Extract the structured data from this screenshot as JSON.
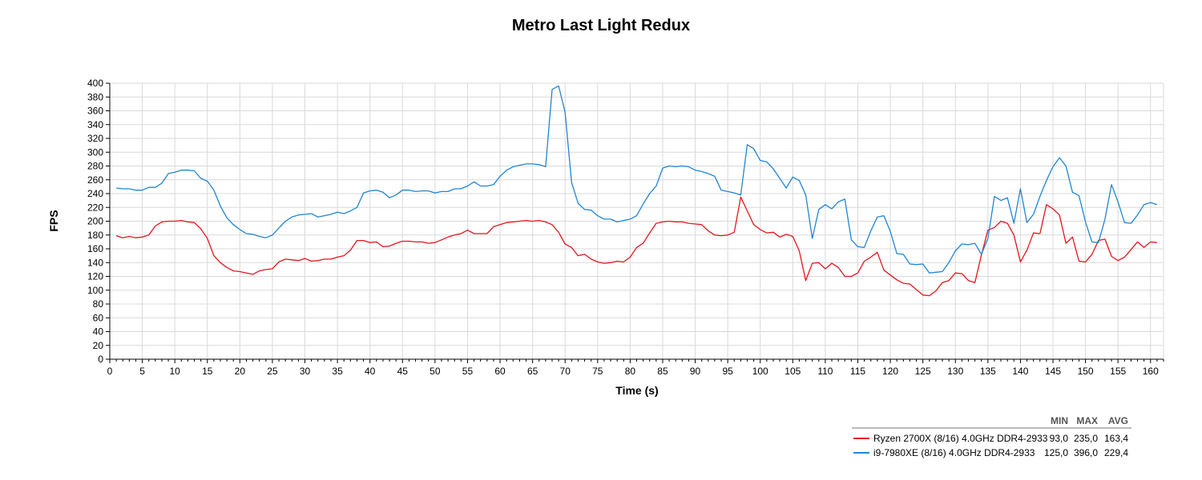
{
  "chart_data": {
    "type": "line",
    "title": "Metro Last Light Redux",
    "xlabel": "Time (s)",
    "ylabel": "FPS",
    "xlim": [
      0,
      162
    ],
    "ylim": [
      0,
      400
    ],
    "x_ticks": [
      0,
      5,
      10,
      15,
      20,
      25,
      30,
      35,
      40,
      45,
      50,
      55,
      60,
      65,
      70,
      75,
      80,
      85,
      90,
      95,
      100,
      105,
      110,
      115,
      120,
      125,
      130,
      135,
      140,
      145,
      150,
      155,
      160
    ],
    "y_ticks": [
      0,
      20,
      40,
      60,
      80,
      100,
      120,
      140,
      160,
      180,
      200,
      220,
      240,
      260,
      280,
      300,
      320,
      340,
      360,
      380,
      400
    ],
    "grid": true,
    "legend_position": "bottom-right",
    "legend_headers": [
      "MIN",
      "MAX",
      "AVG"
    ],
    "series": [
      {
        "name": "Ryzen 2700X (8/16) 4.0GHz DDR4-2933",
        "color": "#e8141c",
        "min": "93,0",
        "max": "235,0",
        "avg": "163,4",
        "x": [
          1,
          2,
          3,
          4,
          5,
          6,
          7,
          8,
          9,
          10,
          11,
          12,
          13,
          14,
          15,
          16,
          17,
          18,
          19,
          20,
          21,
          22,
          23,
          24,
          25,
          26,
          27,
          28,
          29,
          30,
          31,
          32,
          33,
          34,
          35,
          36,
          37,
          38,
          39,
          40,
          41,
          42,
          43,
          44,
          45,
          46,
          47,
          48,
          49,
          50,
          51,
          52,
          53,
          54,
          55,
          56,
          57,
          58,
          59,
          60,
          61,
          62,
          63,
          64,
          65,
          66,
          67,
          68,
          69,
          70,
          71,
          72,
          73,
          74,
          75,
          76,
          77,
          78,
          79,
          80,
          81,
          82,
          83,
          84,
          85,
          86,
          87,
          88,
          89,
          90,
          91,
          92,
          93,
          94,
          95,
          96,
          97,
          98,
          99,
          100,
          101,
          102,
          103,
          104,
          105,
          106,
          107,
          108,
          109,
          110,
          111,
          112,
          113,
          114,
          115,
          116,
          117,
          118,
          119,
          120,
          121,
          122,
          123,
          124,
          125,
          126,
          127,
          128,
          129,
          130,
          131,
          132,
          133,
          134,
          135,
          136,
          137,
          138,
          139,
          140,
          141,
          142,
          143,
          144,
          145,
          146,
          147,
          148,
          149,
          150,
          151,
          152,
          153,
          154,
          155,
          156,
          157,
          158,
          159,
          160,
          161
        ],
        "y": [
          179,
          176,
          178,
          176,
          177,
          180,
          193,
          199,
          200,
          200,
          201,
          199,
          198,
          189,
          175,
          150,
          140,
          133,
          128,
          127,
          125,
          123,
          128,
          130,
          131,
          141,
          145,
          144,
          143,
          146,
          142,
          143,
          145,
          145,
          148,
          150,
          158,
          172,
          172,
          169,
          170,
          163,
          164,
          168,
          171,
          171,
          170,
          170,
          168,
          169,
          173,
          177,
          180,
          182,
          187,
          182,
          182,
          182,
          192,
          195,
          198,
          199,
          200,
          201,
          200,
          201,
          199,
          195,
          184,
          167,
          162,
          150,
          152,
          145,
          141,
          139,
          140,
          142,
          141,
          148,
          162,
          168,
          183,
          197,
          199,
          200,
          199,
          199,
          197,
          196,
          195,
          186,
          180,
          179,
          180,
          184,
          235,
          215,
          195,
          188,
          183,
          184,
          177,
          181,
          178,
          157,
          114,
          139,
          140,
          131,
          139,
          133,
          120,
          120,
          125,
          142,
          148,
          155,
          129,
          122,
          115,
          110,
          109,
          101,
          93,
          92,
          99,
          111,
          114,
          125,
          124,
          114,
          111,
          151,
          187,
          191,
          200,
          197,
          180,
          141,
          158,
          183,
          182,
          224,
          218,
          209,
          168,
          177,
          142,
          141,
          152,
          172,
          174,
          149,
          143,
          148,
          159,
          170,
          162,
          170,
          169
        ]
      },
      {
        "name": "i9-7980XE (8/16) 4.0GHz DDR4-2933",
        "color": "#2185d5",
        "min": "125,0",
        "max": "396,0",
        "avg": "229,4",
        "x": [
          1,
          2,
          3,
          4,
          5,
          6,
          7,
          8,
          9,
          10,
          11,
          12,
          13,
          14,
          15,
          16,
          17,
          18,
          19,
          20,
          21,
          22,
          23,
          24,
          25,
          26,
          27,
          28,
          29,
          30,
          31,
          32,
          33,
          34,
          35,
          36,
          37,
          38,
          39,
          40,
          41,
          42,
          43,
          44,
          45,
          46,
          47,
          48,
          49,
          50,
          51,
          52,
          53,
          54,
          55,
          56,
          57,
          58,
          59,
          60,
          61,
          62,
          63,
          64,
          65,
          66,
          67,
          68,
          69,
          70,
          71,
          72,
          73,
          74,
          75,
          76,
          77,
          78,
          79,
          80,
          81,
          82,
          83,
          84,
          85,
          86,
          87,
          88,
          89,
          90,
          91,
          92,
          93,
          94,
          95,
          96,
          97,
          98,
          99,
          100,
          101,
          102,
          103,
          104,
          105,
          106,
          107,
          108,
          109,
          110,
          111,
          112,
          113,
          114,
          115,
          116,
          117,
          118,
          119,
          120,
          121,
          122,
          123,
          124,
          125,
          126,
          127,
          128,
          129,
          130,
          131,
          132,
          133,
          134,
          135,
          136,
          137,
          138,
          139,
          140,
          141,
          142,
          143,
          144,
          145,
          146,
          147,
          148,
          149,
          150,
          151,
          152,
          153,
          154,
          155,
          156,
          157,
          158,
          159,
          160,
          161
        ],
        "y": [
          248,
          247,
          247,
          245,
          245,
          249,
          249,
          255,
          269,
          271,
          274,
          274,
          273,
          262,
          258,
          245,
          222,
          205,
          195,
          188,
          182,
          181,
          178,
          176,
          180,
          190,
          200,
          206,
          209,
          210,
          211,
          206,
          208,
          210,
          213,
          211,
          215,
          220,
          241,
          244,
          245,
          242,
          234,
          238,
          245,
          245,
          243,
          244,
          244,
          241,
          243,
          243,
          247,
          247,
          251,
          257,
          251,
          251,
          253,
          265,
          274,
          279,
          281,
          283,
          283,
          282,
          279,
          391,
          396,
          358,
          256,
          226,
          217,
          216,
          208,
          203,
          203,
          199,
          201,
          203,
          208,
          225,
          240,
          251,
          277,
          280,
          279,
          280,
          279,
          274,
          272,
          269,
          265,
          245,
          243,
          241,
          238,
          311,
          305,
          288,
          286,
          276,
          262,
          248,
          264,
          259,
          238,
          175,
          217,
          224,
          218,
          228,
          232,
          173,
          163,
          162,
          186,
          206,
          208,
          185,
          153,
          152,
          138,
          137,
          138,
          125,
          126,
          127,
          140,
          157,
          167,
          166,
          168,
          152,
          175,
          236,
          230,
          234,
          197,
          247,
          198,
          210,
          236,
          259,
          279,
          292,
          280,
          242,
          237,
          199,
          170,
          169,
          203,
          253,
          228,
          198,
          197,
          209,
          224,
          227,
          224
        ]
      }
    ]
  }
}
